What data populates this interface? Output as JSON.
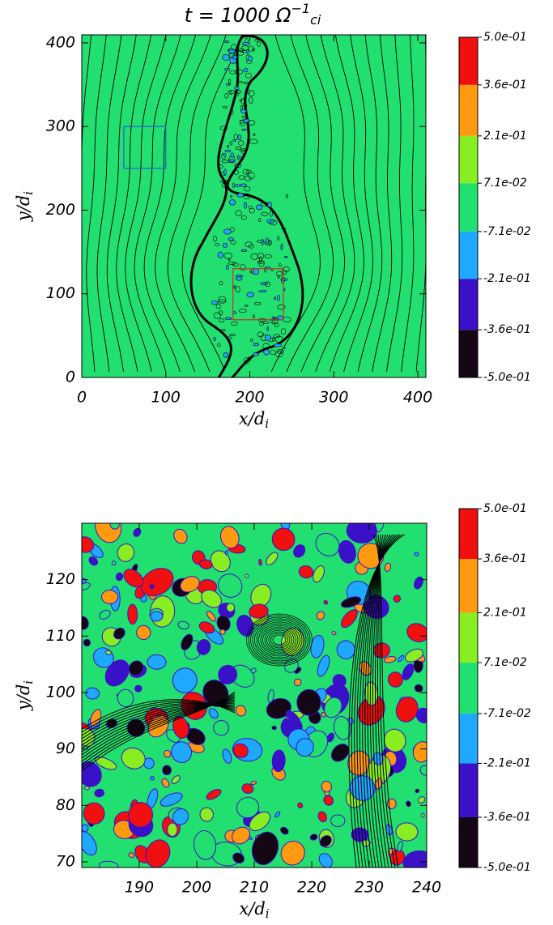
{
  "chart_data": [
    {
      "type": "contour",
      "title": {
        "text": "t = 1000 Ω",
        "sup": "−1",
        "sub": "ci"
      },
      "x_label": {
        "text": "x/d",
        "sub": "i"
      },
      "y_label": {
        "text": "y/d",
        "sub": "i"
      },
      "xlim": [
        0,
        409.6
      ],
      "ylim": [
        0,
        409.6
      ],
      "xticks": [
        0,
        100,
        200,
        300,
        400
      ],
      "yticks": [
        0,
        100,
        200,
        300,
        400
      ],
      "levels": [
        {
          "value": -0.5,
          "label": "-5.0e-01"
        },
        {
          "value": -0.36,
          "label": "-3.6e-01"
        },
        {
          "value": -0.21,
          "label": "-2.1e-01"
        },
        {
          "value": -0.071,
          "label": "-7.1e-02"
        },
        {
          "value": 0.071,
          "label": "7.1e-02"
        },
        {
          "value": 0.21,
          "label": "2.1e-01"
        },
        {
          "value": 0.36,
          "label": "3.6e-01"
        },
        {
          "value": 0.5,
          "label": "5.0e-01"
        }
      ],
      "colors": [
        "#140614",
        "#3a10c8",
        "#1ea8ff",
        "#22e070",
        "#88ee22",
        "#ff9a10",
        "#f01010"
      ],
      "boxes": [
        {
          "x": [
            50,
            100
          ],
          "y": [
            250,
            300
          ],
          "color": "#2060d0"
        },
        {
          "x": [
            180,
            240
          ],
          "y": [
            69,
            130
          ],
          "color": "#c83020"
        }
      ]
    },
    {
      "type": "contour",
      "x_label": {
        "text": "x/d",
        "sub": "i"
      },
      "y_label": {
        "text": "y/d",
        "sub": "i"
      },
      "xlim": [
        180,
        240
      ],
      "ylim": [
        69,
        130
      ],
      "xticks": [
        190,
        200,
        210,
        220,
        230,
        240
      ],
      "yticks": [
        70,
        80,
        90,
        100,
        110,
        120
      ],
      "levels": [
        {
          "value": -0.5,
          "label": "-5.0e-01"
        },
        {
          "value": -0.36,
          "label": "-3.6e-01"
        },
        {
          "value": -0.21,
          "label": "-2.1e-01"
        },
        {
          "value": -0.071,
          "label": "-7.1e-02"
        },
        {
          "value": 0.071,
          "label": "7.1e-02"
        },
        {
          "value": 0.21,
          "label": "2.1e-01"
        },
        {
          "value": 0.36,
          "label": "3.6e-01"
        },
        {
          "value": 0.5,
          "label": "5.0e-01"
        }
      ],
      "colors": [
        "#140614",
        "#3a10c8",
        "#1ea8ff",
        "#22e070",
        "#88ee22",
        "#ff9a10",
        "#f01010"
      ]
    }
  ]
}
